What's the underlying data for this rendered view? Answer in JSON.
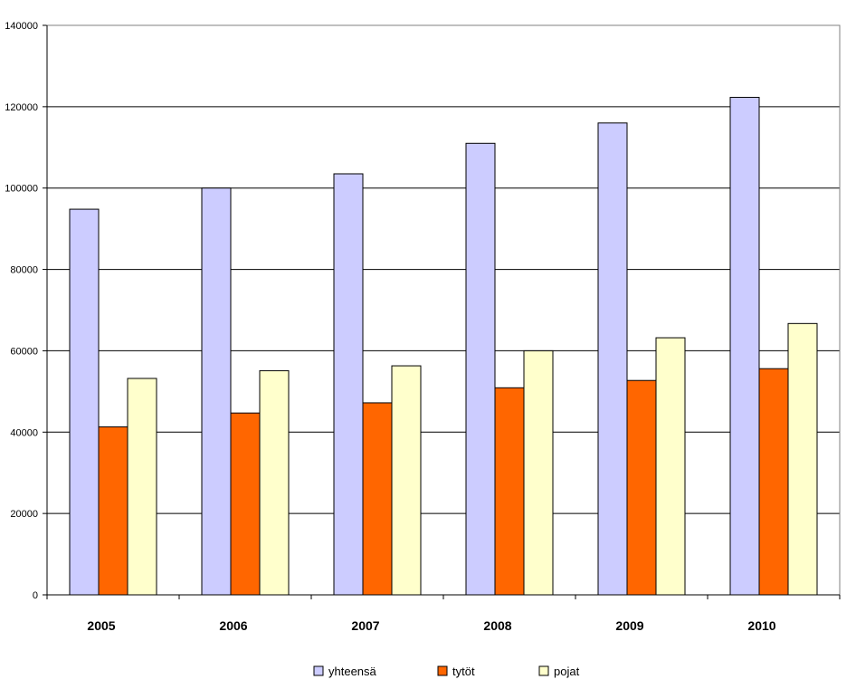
{
  "chart_data": {
    "type": "bar",
    "categories": [
      "2005",
      "2006",
      "2007",
      "2008",
      "2009",
      "2010"
    ],
    "series": [
      {
        "name": "yhteensä",
        "color": "#ccccff",
        "values": [
          94800,
          100000,
          103500,
          111000,
          116000,
          122300
        ]
      },
      {
        "name": "tytöt",
        "color": "#ff6600",
        "values": [
          41300,
          44700,
          47200,
          50900,
          52700,
          55600
        ]
      },
      {
        "name": "pojat",
        "color": "#ffffcc",
        "values": [
          53200,
          55100,
          56300,
          60000,
          63200,
          66700
        ]
      }
    ],
    "ylim": [
      0,
      140000
    ],
    "yticks": [
      "0",
      "20000",
      "40000",
      "60000",
      "80000",
      "100000",
      "120000",
      "140000"
    ],
    "grid": true,
    "legend": "bottom",
    "title": "",
    "xlabel": "",
    "ylabel": ""
  }
}
